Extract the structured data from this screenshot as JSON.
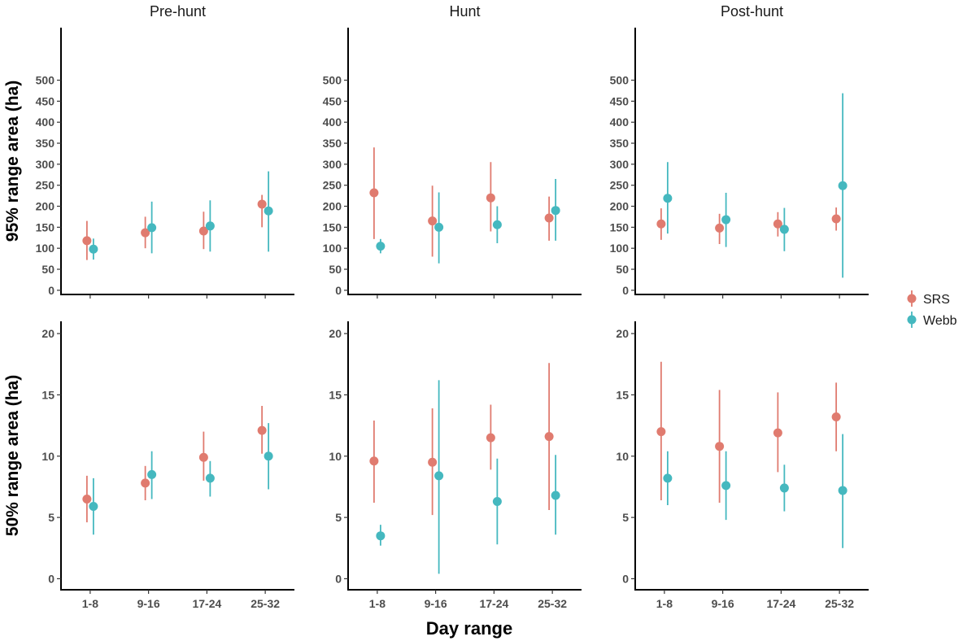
{
  "chart_data": {
    "type": "scatter",
    "subtype": "point-range faceted",
    "xlabel": "Day range",
    "categories": [
      "1-8",
      "9-16",
      "17-24",
      "25-32"
    ],
    "columns": [
      "Pre-hunt",
      "Hunt",
      "Post-hunt"
    ],
    "legend": {
      "position": "right",
      "entries": [
        {
          "name": "SRS",
          "color": "#E07B6F"
        },
        {
          "name": "Webb",
          "color": "#45B8BF"
        }
      ]
    },
    "rows": [
      {
        "ylabel": "95% range area (ha)",
        "ylim": [
          -10,
          625
        ],
        "yticks": [
          0,
          50,
          100,
          150,
          200,
          250,
          300,
          350,
          400,
          450,
          500
        ],
        "panels": [
          {
            "title": "Pre-hunt",
            "series": [
              {
                "name": "SRS",
                "values": [
                  118,
                  137,
                  141,
                  205
                ],
                "lower": [
                  72,
                  100,
                  98,
                  150
                ],
                "upper": [
                  165,
                  175,
                  187,
                  227
                ]
              },
              {
                "name": "Webb",
                "values": [
                  98,
                  149,
                  153,
                  189
                ],
                "lower": [
                  73,
                  88,
                  92,
                  92
                ],
                "upper": [
                  123,
                  211,
                  214,
                  283
                ]
              }
            ]
          },
          {
            "title": "Hunt",
            "series": [
              {
                "name": "SRS",
                "values": [
                  232,
                  165,
                  220,
                  172
                ],
                "lower": [
                  122,
                  80,
                  140,
                  118
                ],
                "upper": [
                  340,
                  249,
                  305,
                  223
                ]
              },
              {
                "name": "Webb",
                "values": [
                  105,
                  150,
                  156,
                  190
                ],
                "lower": [
                  88,
                  64,
                  112,
                  118
                ],
                "upper": [
                  122,
                  233,
                  200,
                  265
                ]
              }
            ]
          },
          {
            "title": "Post-hunt",
            "series": [
              {
                "name": "SRS",
                "values": [
                  158,
                  148,
                  158,
                  170
                ],
                "lower": [
                  120,
                  110,
                  128,
                  142
                ],
                "upper": [
                  195,
                  182,
                  186,
                  197
                ]
              },
              {
                "name": "Webb",
                "values": [
                  219,
                  168,
                  145,
                  249
                ],
                "lower": [
                  135,
                  103,
                  93,
                  30
                ],
                "upper": [
                  305,
                  232,
                  196,
                  469
                ]
              }
            ]
          }
        ]
      },
      {
        "ylabel": "50% range area (ha)",
        "ylim": [
          -0.9,
          21
        ],
        "yticks": [
          0,
          5,
          10,
          15,
          20
        ],
        "panels": [
          {
            "title": "Pre-hunt",
            "series": [
              {
                "name": "SRS",
                "values": [
                  6.5,
                  7.8,
                  9.9,
                  12.1
                ],
                "lower": [
                  4.6,
                  6.4,
                  8.0,
                  10.2
                ],
                "upper": [
                  8.4,
                  9.2,
                  12.0,
                  14.1
                ]
              },
              {
                "name": "Webb",
                "values": [
                  5.9,
                  8.5,
                  8.2,
                  10.0
                ],
                "lower": [
                  3.6,
                  6.5,
                  6.7,
                  7.3
                ],
                "upper": [
                  8.2,
                  10.4,
                  9.6,
                  12.7
                ]
              }
            ]
          },
          {
            "title": "Hunt",
            "series": [
              {
                "name": "SRS",
                "values": [
                  9.6,
                  9.5,
                  11.5,
                  11.6
                ],
                "lower": [
                  6.2,
                  5.2,
                  8.9,
                  5.6
                ],
                "upper": [
                  12.9,
                  13.9,
                  14.2,
                  17.6
                ]
              },
              {
                "name": "Webb",
                "values": [
                  3.5,
                  8.4,
                  6.3,
                  6.8
                ],
                "lower": [
                  2.7,
                  0.4,
                  2.8,
                  3.6
                ],
                "upper": [
                  4.4,
                  16.2,
                  9.8,
                  10.1
                ]
              }
            ]
          },
          {
            "title": "Post-hunt",
            "series": [
              {
                "name": "SRS",
                "values": [
                  12.0,
                  10.8,
                  11.9,
                  13.2
                ],
                "lower": [
                  6.4,
                  6.2,
                  8.7,
                  10.4
                ],
                "upper": [
                  17.7,
                  15.4,
                  15.2,
                  16.0
                ]
              },
              {
                "name": "Webb",
                "values": [
                  8.2,
                  7.6,
                  7.4,
                  7.2
                ],
                "lower": [
                  6.0,
                  4.8,
                  5.5,
                  2.5
                ],
                "upper": [
                  10.4,
                  10.4,
                  9.3,
                  11.8
                ]
              }
            ]
          }
        ]
      }
    ]
  }
}
